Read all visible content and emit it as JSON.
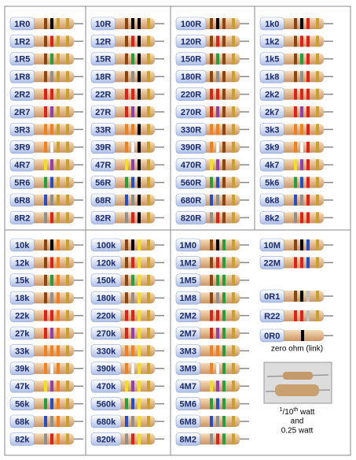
{
  "sections": [
    {
      "columns": [
        [
          "1R0",
          "1R2",
          "1R5",
          "1R8",
          "2R2",
          "2R7",
          "3R3",
          "3R9",
          "4R7",
          "5R6",
          "6R8",
          "8R2"
        ],
        [
          "10R",
          "12R",
          "15R",
          "18R",
          "22R",
          "27R",
          "33R",
          "39R",
          "47R",
          "56R",
          "68R",
          "82R"
        ],
        [
          "100R",
          "120R",
          "150R",
          "180R",
          "220R",
          "270R",
          "330R",
          "390R",
          "470R",
          "560R",
          "680R",
          "820R"
        ],
        [
          "1k0",
          "1k2",
          "1k5",
          "1k8",
          "2k2",
          "2k7",
          "3k3",
          "3k9",
          "4k7",
          "5k6",
          "6k8",
          "8k2"
        ]
      ]
    },
    {
      "columns": [
        [
          "10k",
          "12k",
          "15k",
          "18k",
          "22k",
          "27k",
          "33k",
          "39k",
          "47k",
          "56k",
          "68k",
          "82k"
        ],
        [
          "100k",
          "120k",
          "150k",
          "180k",
          "220k",
          "270k",
          "330k",
          "390k",
          "470k",
          "560k",
          "680k",
          "820k"
        ],
        [
          "1M0",
          "1M2",
          "1M5",
          "1M8",
          "2M2",
          "2M7",
          "3M3",
          "3M9",
          "4M7",
          "5M6",
          "6M8",
          "8M2"
        ],
        [
          "10M",
          "22M"
        ]
      ]
    }
  ],
  "small": [
    "0R1",
    "R22",
    "0R0"
  ],
  "zero_note": "zero ohm (link)",
  "watt_note": {
    "num": "1",
    "den": "/10",
    "suffix": "th",
    "unit": " watt",
    "line2": "and",
    "line3": "0.25 watt"
  }
}
